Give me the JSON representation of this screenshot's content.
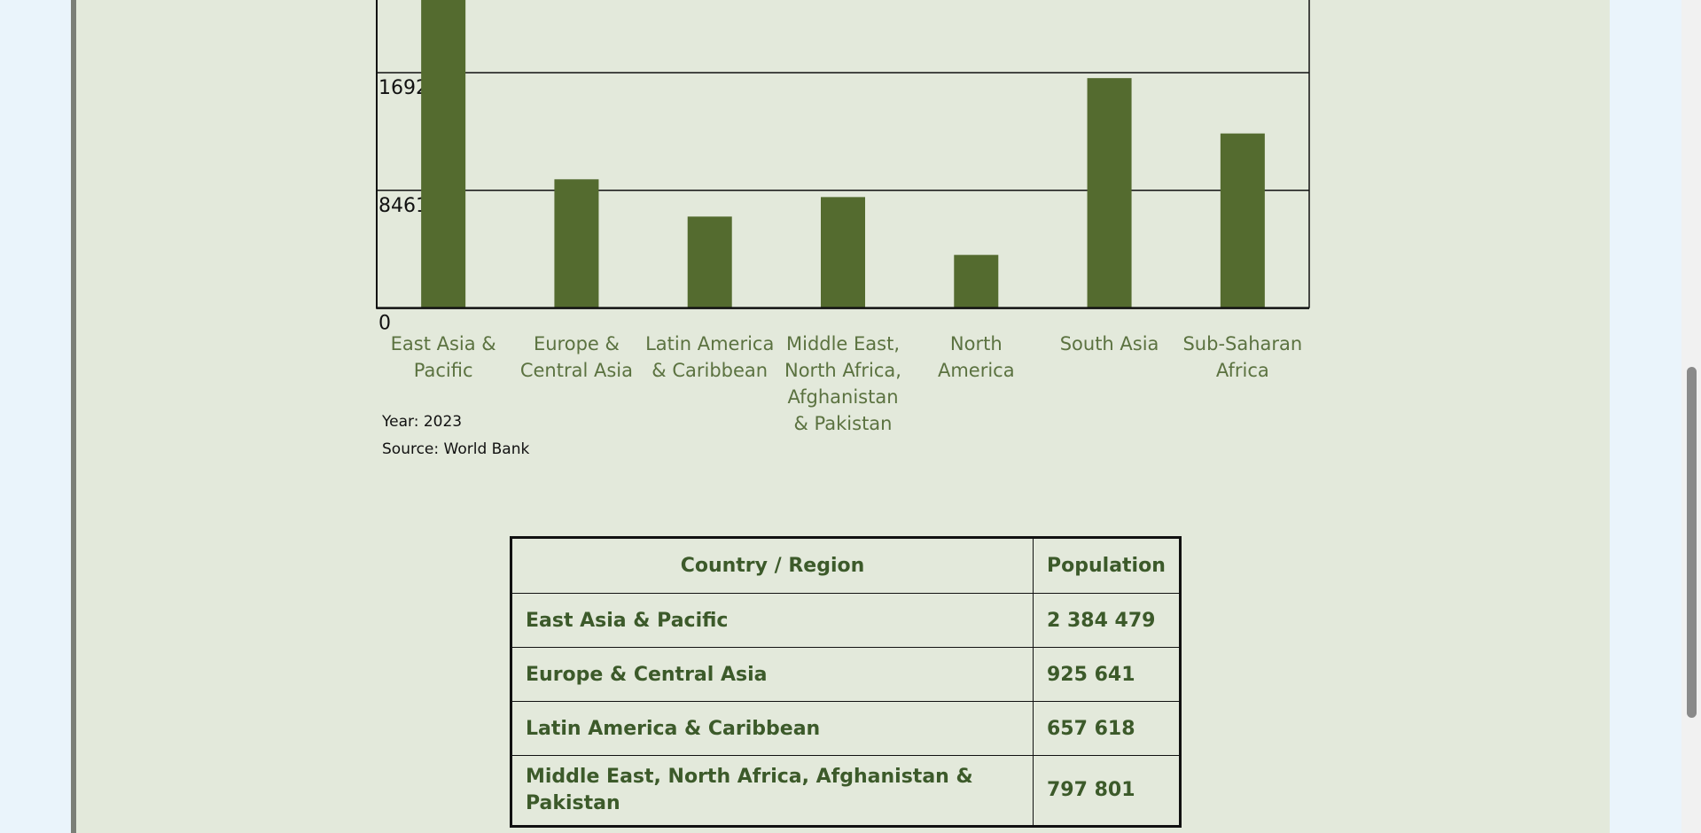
{
  "chart_data": {
    "type": "bar",
    "categories": [
      "East Asia & Pacific",
      "Europe & Central Asia",
      "Latin America & Caribbean",
      "Middle East, North Africa, Afghanistan & Pakistan",
      "North America",
      "South Asia",
      "Sub-Saharan Africa"
    ],
    "values": [
      2384479,
      925641,
      657618,
      797801,
      382000,
      1653000,
      1255000
    ],
    "color": "#546b2f",
    "ylim": [
      0,
      2538360
    ],
    "yticks": [
      0,
      846120,
      1692240
    ],
    "grid": true,
    "annotations": [
      "Year: 2023",
      "Source: World Bank"
    ]
  },
  "table": {
    "header": [
      "Country / Region",
      "Population"
    ],
    "rows": [
      [
        "East Asia & Pacific",
        "2 384 479"
      ],
      [
        "Europe & Central Asia",
        "925 641"
      ],
      [
        "Latin America & Caribbean",
        "657 618"
      ],
      [
        "Middle East, North Africa, Afghanistan & Pakistan",
        "797 801"
      ]
    ]
  }
}
